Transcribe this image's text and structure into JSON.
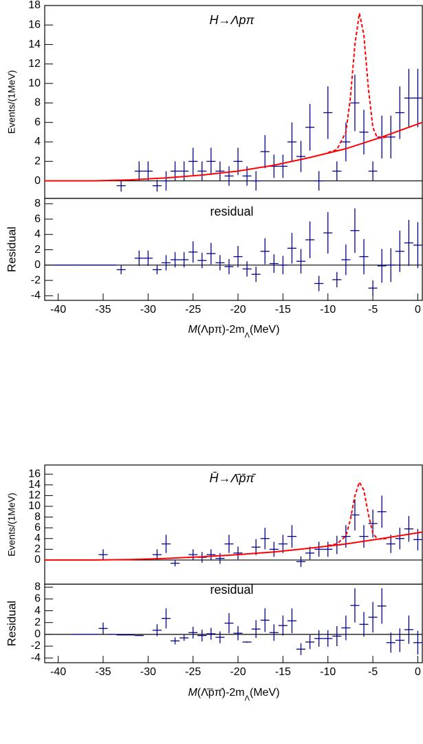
{
  "chart_data": [
    {
      "type": "errorbar",
      "title": "H→Λpπ",
      "y_label": "Events/(1MeV)",
      "color": "#00008b",
      "xlim": [
        -41.5,
        0.5
      ],
      "ylim": [
        -1.8,
        18
      ],
      "yticks": [
        0,
        2,
        4,
        6,
        8,
        10,
        12,
        14,
        16,
        18
      ],
      "x": [
        -33,
        -31,
        -30,
        -29,
        -28,
        -27,
        -26,
        -25,
        -24,
        -23,
        -22,
        -21,
        -20,
        -19,
        -18,
        -17,
        -16,
        -15,
        -14,
        -13,
        -12,
        -11,
        -10,
        -9,
        -8,
        -7,
        -6,
        -5,
        -4,
        -3,
        -2,
        -1,
        0
      ],
      "values": [
        -0.5,
        1,
        1,
        -0.5,
        0,
        1,
        1,
        2,
        1,
        2,
        1,
        0.5,
        2,
        0.5,
        0,
        3,
        1.5,
        1.5,
        4,
        2.5,
        5.5,
        0,
        7,
        1,
        4,
        8,
        5,
        1,
        4.5,
        4.5,
        7,
        8.5,
        8.5
      ],
      "errors": [
        0.6,
        1,
        1,
        0.6,
        1,
        1,
        1,
        1.4,
        1,
        1.4,
        1,
        1,
        1.4,
        1,
        1,
        1.7,
        1.2,
        1.2,
        2,
        1.6,
        2.4,
        1,
        2.7,
        1,
        2,
        2.9,
        2.3,
        1,
        2.2,
        2.2,
        2.7,
        3,
        3
      ],
      "lines": [
        {
          "color": "#ff0000",
          "style": "solid",
          "x": [
            -41.5,
            -36,
            -32,
            -28,
            -24,
            -20,
            -16,
            -12,
            -8,
            -4,
            0.5
          ],
          "values": [
            0,
            0,
            0.1,
            0.3,
            0.6,
            1.0,
            1.6,
            2.4,
            3.3,
            4.5,
            6
          ]
        },
        {
          "color": "#ff0000",
          "style": "dashed",
          "x": [
            -10,
            -9,
            -8,
            -7.5,
            -7,
            -6.5,
            -6,
            -5.5,
            -5,
            -4.5,
            -4,
            -3.5
          ],
          "values": [
            2.9,
            3.2,
            5,
            8.5,
            14,
            17.2,
            15,
            9.5,
            5.5,
            4.4,
            4.4,
            4.5
          ]
        }
      ]
    },
    {
      "type": "errorbar",
      "title": "residual",
      "y_label": "Residual",
      "color": "#00008b",
      "x_label": "M",
      "x_label_mid": "(Λpπ)-2m",
      "x_label_sub": "Λ",
      "x_label_unit": "(MeV)",
      "xlim": [
        -41.5,
        0.5
      ],
      "xticks": [
        -40,
        -35,
        -30,
        -25,
        -20,
        -15,
        -10,
        -5,
        0
      ],
      "ylim": [
        -4.6,
        8.7
      ],
      "yticks": [
        -4,
        -2,
        0,
        2,
        4,
        6,
        8
      ],
      "x": [
        -40,
        -39,
        -38,
        -37,
        -36,
        -35,
        -34,
        -33,
        -31,
        -30,
        -29,
        -28,
        -27,
        -26,
        -25,
        -24,
        -23,
        -22,
        -21,
        -20,
        -19,
        -18,
        -17,
        -16,
        -15,
        -14,
        -13,
        -12,
        -11,
        -10,
        -9,
        -8,
        -7,
        -6,
        -5,
        -4,
        -3,
        -2,
        -1,
        0
      ],
      "values": [
        0,
        0,
        0,
        0,
        0,
        0,
        0,
        -0.6,
        0.9,
        0.9,
        -0.6,
        0.3,
        0.7,
        0.7,
        1.7,
        0.6,
        1.5,
        0.3,
        -0.2,
        1.1,
        -0.5,
        -1.2,
        1.8,
        0.2,
        0,
        2.2,
        0.5,
        3.3,
        -2.4,
        4.2,
        -1.9,
        0.7,
        4.5,
        1.1,
        -3,
        -0.1,
        0,
        1.8,
        2.9,
        2.6
      ],
      "errors": [
        0,
        0,
        0,
        0,
        0,
        0,
        0,
        0.6,
        1,
        1,
        0.6,
        1,
        1,
        1,
        1.4,
        1,
        1.4,
        1,
        1,
        1.4,
        1,
        1,
        1.7,
        1.2,
        1.2,
        2,
        1.6,
        2.4,
        1,
        2.7,
        1,
        2,
        2.9,
        2.3,
        1,
        2.2,
        2.2,
        2.7,
        3,
        3
      ]
    },
    {
      "type": "errorbar",
      "title": "H̄→Λ̄p̄π̄",
      "y_label": "Events/(1MeV)",
      "color": "#00008b",
      "xlim": [
        -41.5,
        0.5
      ],
      "ylim": [
        -4.5,
        17.7
      ],
      "yticks": [
        0,
        2,
        4,
        6,
        8,
        10,
        12,
        14,
        16
      ],
      "x": [
        -35,
        -29,
        -28,
        -27,
        -25,
        -24,
        -23,
        -22,
        -21,
        -20,
        -18,
        -17,
        -16,
        -15,
        -14,
        -13,
        -12,
        -11,
        -10,
        -9,
        -8,
        -7,
        -6,
        -5,
        -4,
        -3,
        -2,
        -1,
        0
      ],
      "values": [
        1,
        1,
        3,
        -0.6,
        1,
        0.5,
        1,
        0.3,
        3,
        1.3,
        2.4,
        4,
        2,
        3,
        4.4,
        -0.3,
        1.3,
        2,
        2,
        2.8,
        4.4,
        8.4,
        4.4,
        6.8,
        9,
        3,
        4,
        5.8,
        3.8
      ],
      "errors": [
        1,
        1,
        1.7,
        0.6,
        1,
        1,
        1,
        1,
        1.7,
        1.2,
        1.5,
        2,
        1.4,
        1.7,
        2.1,
        1,
        1.2,
        1.4,
        1.4,
        1.7,
        2.1,
        2.9,
        2.1,
        2.6,
        3,
        1.7,
        2,
        2.4,
        2
      ],
      "lines": [
        {
          "color": "#ff0000",
          "style": "solid",
          "x": [
            -41.5,
            -36,
            -32,
            -28,
            -24,
            -20,
            -16,
            -12,
            -8,
            -4,
            0.5
          ],
          "values": [
            0,
            0,
            0.1,
            0.3,
            0.6,
            1.0,
            1.5,
            2.2,
            3.0,
            4.0,
            5.2
          ]
        },
        {
          "color": "#ff0000",
          "style": "dashed",
          "x": [
            -10,
            -9,
            -8,
            -7.5,
            -7,
            -6.5,
            -6,
            -5.5,
            -5,
            -4.5,
            -4,
            -3.5
          ],
          "values": [
            2.7,
            3,
            4.5,
            7.5,
            12,
            14.5,
            13,
            8.5,
            5,
            3.9,
            3.9,
            4
          ]
        }
      ]
    },
    {
      "type": "errorbar",
      "title": "residual",
      "y_label": "Residual",
      "color": "#00008b",
      "x_label": "M",
      "x_label_mid": "(Λ̄p̄π̄)-2m",
      "x_label_sub": "Λ",
      "x_label_unit": "(MeV)",
      "xlim": [
        -41.5,
        0.5
      ],
      "xticks": [
        -40,
        -35,
        -30,
        -25,
        -20,
        -15,
        -10,
        -5,
        0
      ],
      "ylim": [
        -4.8,
        8.5
      ],
      "yticks": [
        -4,
        -2,
        0,
        2,
        4,
        6,
        8
      ],
      "x": [
        -38,
        -37,
        -36,
        -35,
        -34,
        -33,
        -32,
        -31,
        -29,
        -28,
        -27,
        -26,
        -25,
        -24,
        -23,
        -22,
        -21,
        -20,
        -19,
        -18,
        -17,
        -16,
        -15,
        -14,
        -13,
        -12,
        -11,
        -10,
        -9,
        -8,
        -7,
        -6,
        -5,
        -4,
        -3,
        -2,
        -1,
        0
      ],
      "values": [
        0,
        0,
        0,
        1,
        0,
        -0.1,
        -0.1,
        -0.2,
        0.7,
        2.7,
        -1.1,
        -0.6,
        0.3,
        -0.2,
        0.1,
        -0.5,
        1.9,
        0.2,
        -1.3,
        0.9,
        2.4,
        0.3,
        1.5,
        2.3,
        -2.5,
        -1.3,
        -0.7,
        -0.7,
        -0.3,
        1.1,
        4.9,
        1.7,
        2.9,
        4.8,
        -1.4,
        -1,
        0.8,
        -1.4
      ],
      "errors": [
        0,
        0,
        0,
        1,
        0,
        0,
        0,
        0,
        1,
        1.7,
        0.6,
        0.5,
        1,
        1,
        1,
        1,
        1.7,
        1.2,
        0.1,
        1.5,
        2,
        1.4,
        1.7,
        2.1,
        1,
        1.2,
        1.4,
        1.4,
        1.7,
        2.1,
        2.9,
        2.1,
        2.6,
        3,
        1.7,
        2,
        2.4,
        2
      ]
    }
  ]
}
